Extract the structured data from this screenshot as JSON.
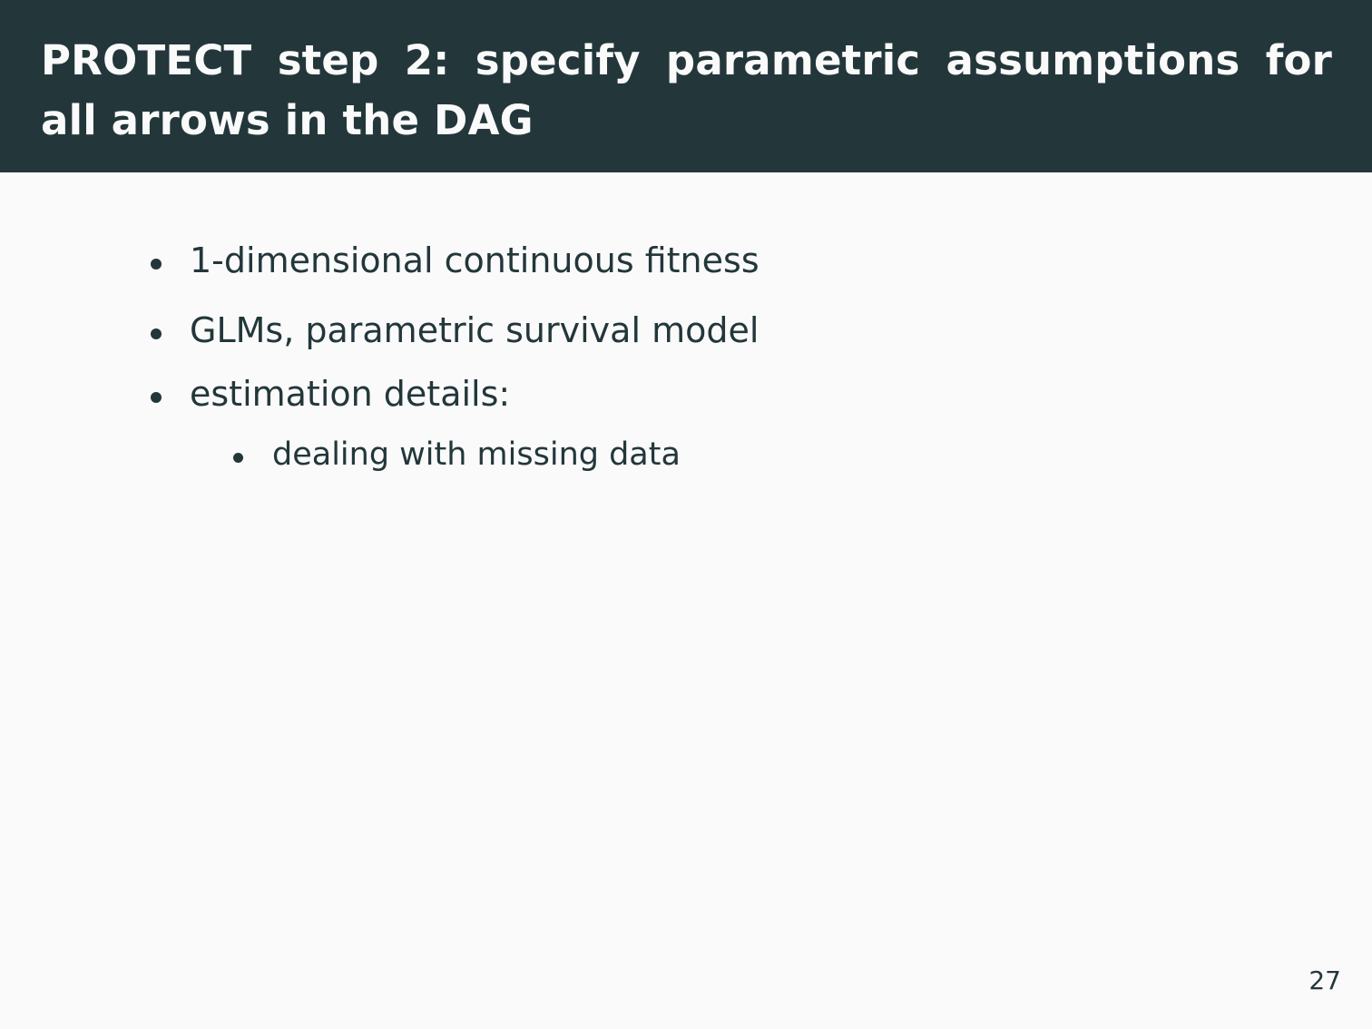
{
  "slide": {
    "title": "PROTECT step 2: specify parametric assumptions for all arrows in the DAG",
    "bullets": [
      "1-dimensional continuous fitness",
      "GLMs, parametric survival model",
      "estimation details:"
    ],
    "sub_bullets": [
      "dealing with missing data"
    ],
    "page_number": "27"
  },
  "colors": {
    "title_background": "#23373b",
    "title_text": "#fafafa",
    "body_background": "#fafafa",
    "body_text": "#23373b"
  }
}
